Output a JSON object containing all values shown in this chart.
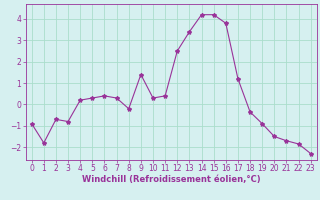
{
  "x": [
    0,
    1,
    2,
    3,
    4,
    5,
    6,
    7,
    8,
    9,
    10,
    11,
    12,
    13,
    14,
    15,
    16,
    17,
    18,
    19,
    20,
    21,
    22,
    23
  ],
  "y": [
    -0.9,
    -1.8,
    -0.7,
    -0.8,
    0.2,
    0.3,
    0.4,
    0.3,
    -0.2,
    1.4,
    0.3,
    0.4,
    2.5,
    3.4,
    4.2,
    4.2,
    3.8,
    1.2,
    -0.35,
    -0.9,
    -1.5,
    -1.7,
    -1.85,
    -2.3
  ],
  "line_color": "#993399",
  "marker": "*",
  "marker_size": 3,
  "bg_color": "#d6f0f0",
  "grid_color": "#aaddcc",
  "xlabel": "Windchill (Refroidissement éolien,°C)",
  "xlabel_fontsize": 6.0,
  "ylim": [
    -2.6,
    4.7
  ],
  "xlim": [
    -0.5,
    23.5
  ],
  "yticks": [
    -2,
    -1,
    0,
    1,
    2,
    3,
    4
  ],
  "xticks": [
    0,
    1,
    2,
    3,
    4,
    5,
    6,
    7,
    8,
    9,
    10,
    11,
    12,
    13,
    14,
    15,
    16,
    17,
    18,
    19,
    20,
    21,
    22,
    23
  ],
  "tick_fontsize": 5.5
}
